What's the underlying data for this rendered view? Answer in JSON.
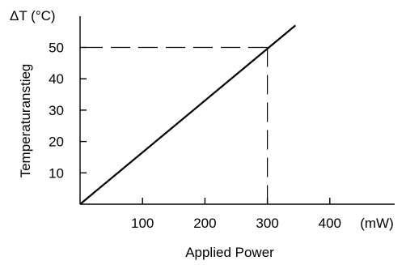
{
  "chart_data": {
    "type": "line",
    "title": "",
    "xlabel": "Applied Power",
    "x_unit": "(mW)",
    "ylabel": "Temperaturanstieg",
    "y_unit": "ΔT (°C)",
    "xlim": [
      0,
      480
    ],
    "ylim": [
      0,
      60
    ],
    "x_ticks": [
      100,
      200,
      300,
      400
    ],
    "y_ticks": [
      10,
      20,
      30,
      40,
      50
    ],
    "grid": false,
    "legend": "none",
    "series": [
      {
        "x": [
          0,
          345
        ],
        "y": [
          0,
          57
        ],
        "color": "#000000"
      }
    ],
    "reference_point": {
      "x": 300,
      "y": 50,
      "style": "dashed"
    }
  }
}
